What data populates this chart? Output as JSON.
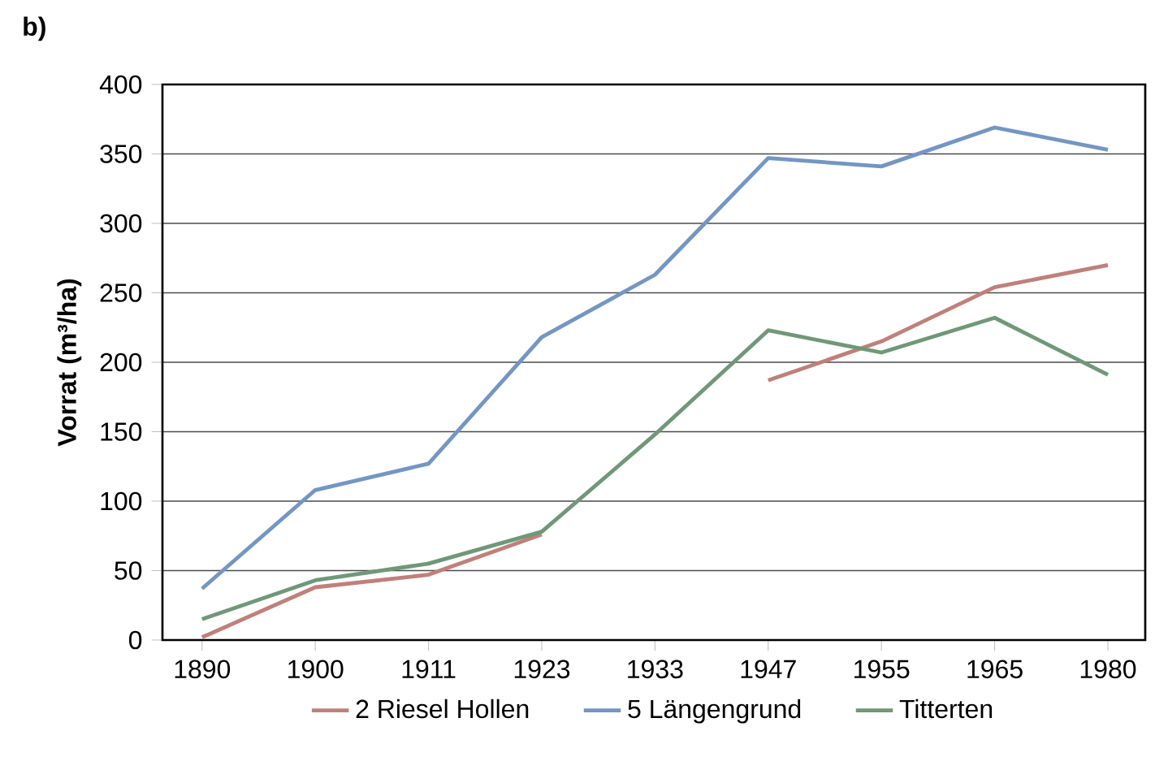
{
  "chart_data": {
    "type": "line",
    "annotations": [
      "b)"
    ],
    "ylabel": "Vorrat (m³/ha)",
    "categories": [
      "1890",
      "1900",
      "1911",
      "1923",
      "1933",
      "1947",
      "1955",
      "1965",
      "1980"
    ],
    "series": [
      {
        "name": "2 Riesel Hollen",
        "color": "#c0807a",
        "values": [
          2,
          38,
          47,
          76,
          null,
          187,
          215,
          254,
          270
        ]
      },
      {
        "name": "5 Längengrund",
        "color": "#7396c4",
        "values": [
          37,
          108,
          127,
          218,
          263,
          347,
          341,
          369,
          353
        ]
      },
      {
        "name": "Titterten",
        "color": "#6f9878",
        "values": [
          15,
          43,
          55,
          78,
          148,
          223,
          207,
          232,
          191
        ]
      }
    ],
    "ylim": [
      0,
      400
    ],
    "yticks": [
      0,
      50,
      100,
      150,
      200,
      250,
      300,
      350,
      400
    ],
    "grid": "y",
    "legend": "bottom"
  }
}
